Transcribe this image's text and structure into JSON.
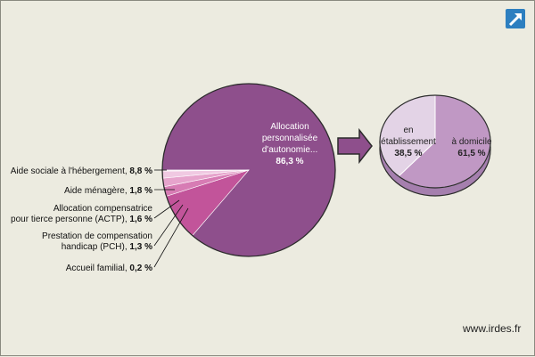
{
  "watermark": "www.irdes.fr",
  "expand_icon": "expand-arrow-icon",
  "colors": {
    "apa": "#8e4f8c",
    "ash": "#c2549a",
    "aide_menagere": "#d77cb4",
    "actp": "#e6a4cc",
    "pch": "#f0c9e2",
    "accueil": "#f7e4f0",
    "domicile": "#c098c4",
    "etablissement": "#e3d3e6",
    "arrow": "#8e4f8c",
    "icon": "#2d7fc0"
  },
  "chart_data": [
    {
      "type": "pie",
      "slices": [
        {
          "key": "apa",
          "label_lines": [
            "Allocation",
            "personnalisée",
            "d'autonomie..."
          ],
          "value_text": "86,3 %",
          "value": 86.3
        },
        {
          "key": "ash",
          "label": "Aide sociale à l'hébergement, ",
          "value_text": "8,8 %",
          "value": 8.8
        },
        {
          "key": "aide_menagere",
          "label": "Aide ménagère, ",
          "value_text": "1,8 %",
          "value": 1.8
        },
        {
          "key": "actp",
          "label_line1": "Allocation compensatrice",
          "label": "pour tierce personne (ACTP), ",
          "value_text": "1,6 %",
          "value": 1.6
        },
        {
          "key": "pch",
          "label_line1": "Prestation de compensation",
          "label": "handicap (PCH), ",
          "value_text": "1,3 %",
          "value": 1.3
        },
        {
          "key": "accueil",
          "label": "Accueil familial, ",
          "value_text": "0,2 %",
          "value": 0.2
        }
      ]
    },
    {
      "type": "pie",
      "slices": [
        {
          "key": "domicile",
          "label": "à domicile",
          "value_text": "61,5 %",
          "value": 61.5
        },
        {
          "key": "etablissement",
          "label_lines": [
            "en",
            "établissement"
          ],
          "value_text": "38,5 %",
          "value": 38.5
        }
      ]
    }
  ]
}
